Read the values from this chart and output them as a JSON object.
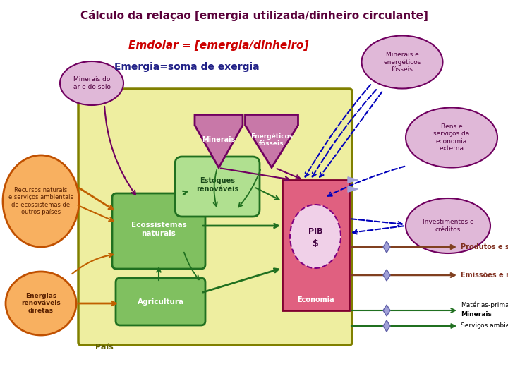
{
  "title": "Cálculo da relação [emergia utilizada/dinheiro circulante]",
  "subtitle1": "Emdolar = [emergia/dinheiro]",
  "subtitle2": "Emergia=soma de exergia",
  "title_color": "#5a003a",
  "subtitle1_color": "#cc0000",
  "subtitle2_color": "#222288",
  "bg_color": "#ffffff",
  "country_box_color": "#eeeea0",
  "country_box_edge": "#808000",
  "eco_box_color": "#e06080",
  "eco_box_edge": "#800030",
  "eco_sys_color": "#80c060",
  "eco_sys_edge": "#207020",
  "agri_color": "#80c060",
  "agri_edge": "#207020",
  "stock_color": "#b0e090",
  "stock_edge": "#207020",
  "orange_ellipse_color": "#f8b060",
  "orange_ellipse_edge": "#c05000",
  "purple_ellipse_color": "#e0b8d8",
  "purple_ellipse_edge": "#700060",
  "mineral_shape_color": "#c878a8",
  "mineral_shape_edge": "#700060",
  "pib_circle_color": "#f0d0e8",
  "pib_circle_edge": "#800080",
  "arrow_green": "#207020",
  "arrow_orange": "#c06000",
  "arrow_brown": "#804020",
  "arrow_blue_dash": "#0000bb",
  "arrow_purple": "#700060",
  "output_text_color": "#803020",
  "output_text_color2": "#000000"
}
